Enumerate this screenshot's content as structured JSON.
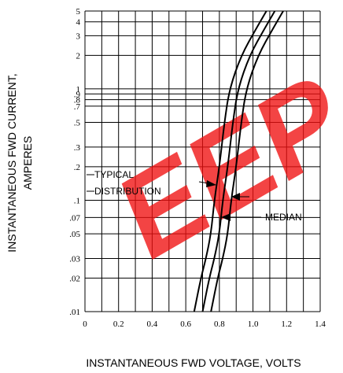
{
  "chart_data": {
    "type": "line",
    "xlabel": "INSTANTANEOUS FWD VOLTAGE, VOLTS",
    "ylabel_line1": "INSTANTANEOUS FWD CURRENT,",
    "ylabel_line2": "AMPERES",
    "xlim": [
      0,
      1.4
    ],
    "ylim": [
      0.01,
      5
    ],
    "y_scale": "log",
    "grid": true,
    "x_ticks": [
      {
        "v": 0,
        "label": "0"
      },
      {
        "v": 0.2,
        "label": "0.2"
      },
      {
        "v": 0.4,
        "label": "0.4"
      },
      {
        "v": 0.6,
        "label": "0.6"
      },
      {
        "v": 0.8,
        "label": "0.8"
      },
      {
        "v": 1.0,
        "label": "1.0"
      },
      {
        "v": 1.2,
        "label": "1.2"
      },
      {
        "v": 1.4,
        "label": "1.4"
      }
    ],
    "y_ticks": [
      {
        "v": 0.01,
        "label": ".01"
      },
      {
        "v": 0.02,
        "label": ".02"
      },
      {
        "v": 0.03,
        "label": ".03"
      },
      {
        "v": 0.05,
        "label": ".05"
      },
      {
        "v": 0.07,
        "label": ".07"
      },
      {
        "v": 0.1,
        "label": ".1"
      },
      {
        "v": 0.2,
        "label": ".2"
      },
      {
        "v": 0.3,
        "label": ".3"
      },
      {
        "v": 0.5,
        "label": ".5"
      },
      {
        "v": 0.7,
        "label": ".7"
      },
      {
        "v": 0.8,
        "label": ".8"
      },
      {
        "v": 0.9,
        "label": ".9"
      },
      {
        "v": 1,
        "label": "1"
      },
      {
        "v": 2,
        "label": "2"
      },
      {
        "v": 3,
        "label": "3"
      },
      {
        "v": 4,
        "label": "4"
      },
      {
        "v": 5,
        "label": "5"
      }
    ],
    "series": [
      {
        "points": [
          [
            0.65,
            0.01
          ],
          [
            0.69,
            0.02
          ],
          [
            0.72,
            0.03
          ],
          [
            0.75,
            0.05
          ],
          [
            0.77,
            0.1
          ],
          [
            0.8,
            0.2
          ],
          [
            0.83,
            0.5
          ],
          [
            0.86,
            1.0
          ],
          [
            0.93,
            2.0
          ],
          [
            1.02,
            3.5
          ],
          [
            1.08,
            5.0
          ]
        ]
      },
      {
        "points": [
          [
            0.7,
            0.01
          ],
          [
            0.74,
            0.02
          ],
          [
            0.77,
            0.03
          ],
          [
            0.8,
            0.05
          ],
          [
            0.82,
            0.1
          ],
          [
            0.85,
            0.2
          ],
          [
            0.88,
            0.5
          ],
          [
            0.91,
            1.0
          ],
          [
            0.98,
            2.0
          ],
          [
            1.07,
            3.5
          ],
          [
            1.13,
            5.0
          ]
        ]
      },
      {
        "points": [
          [
            0.75,
            0.01
          ],
          [
            0.79,
            0.02
          ],
          [
            0.82,
            0.03
          ],
          [
            0.85,
            0.05
          ],
          [
            0.87,
            0.1
          ],
          [
            0.9,
            0.2
          ],
          [
            0.93,
            0.5
          ],
          [
            0.96,
            1.0
          ],
          [
            1.03,
            2.0
          ],
          [
            1.12,
            3.5
          ],
          [
            1.18,
            5.0
          ]
        ]
      }
    ],
    "annotations": {
      "typical": "TYPICAL",
      "distribution": "DISTRIBUTION",
      "median": "MEDIAN"
    },
    "watermark": {
      "text": "EEP",
      "color": "#f01010"
    }
  }
}
